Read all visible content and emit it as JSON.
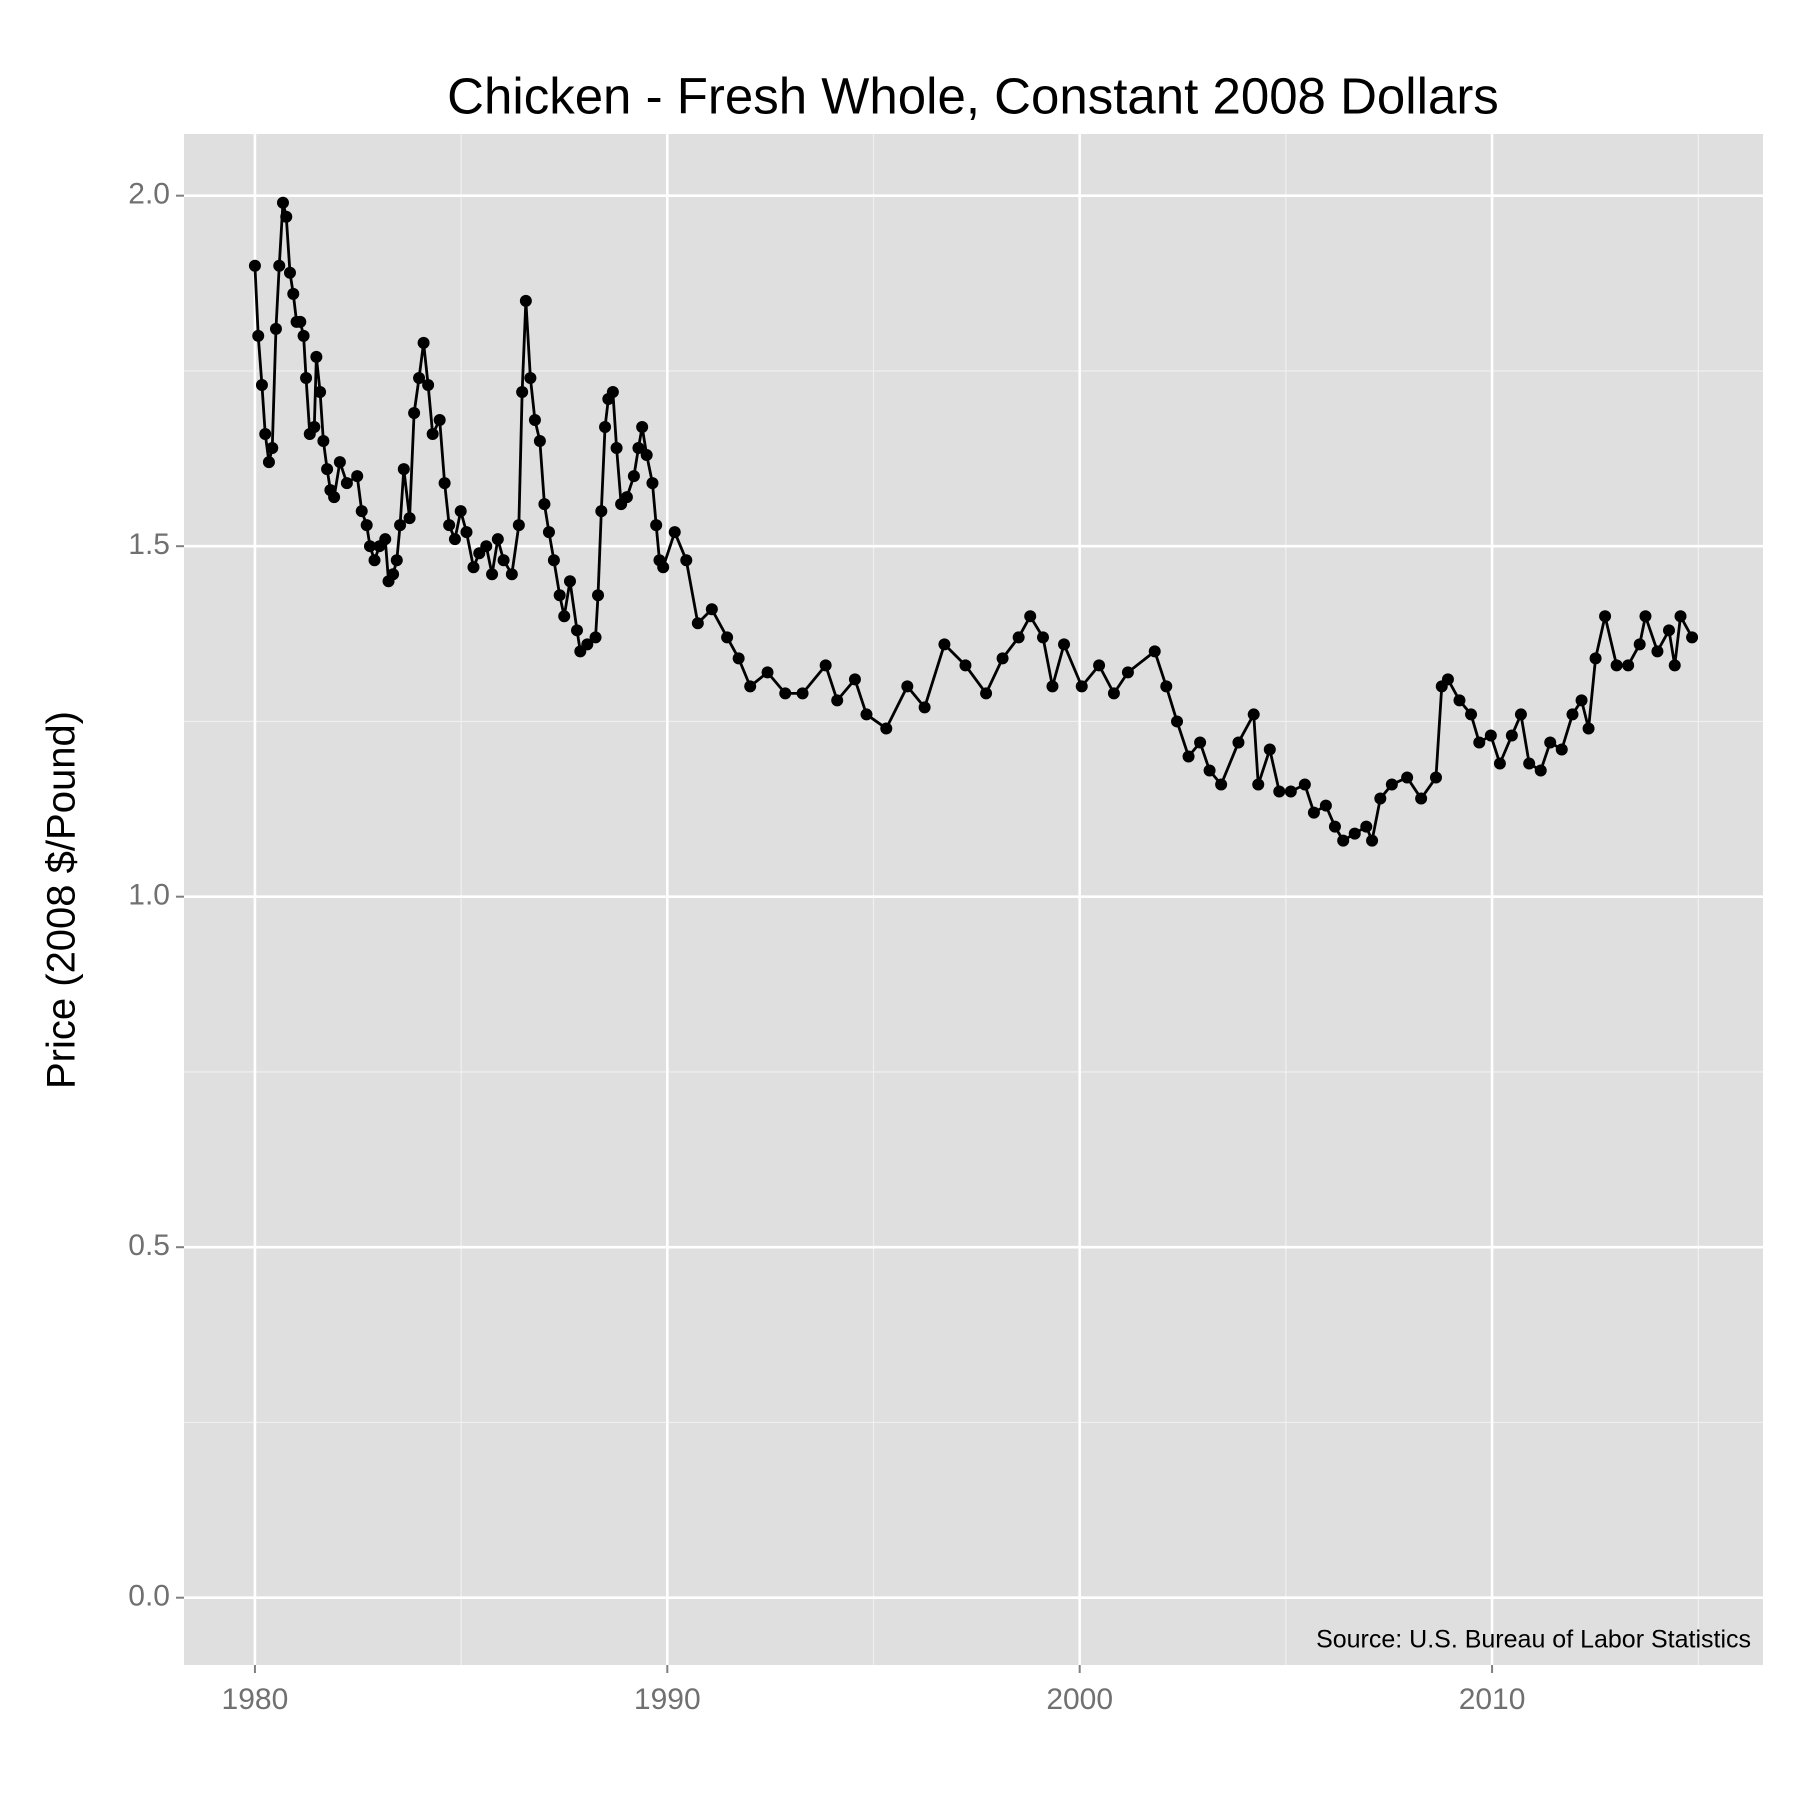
{
  "chart_data": {
    "type": "line",
    "title": "Chicken - Fresh Whole, Constant 2008 Dollars",
    "y_label": "Price (2008 $/Pound)",
    "annotation": "Source:  U.S. Bureau of Labor Statistics",
    "xlim": [
      1978.28,
      2016.57
    ],
    "ylim": [
      -0.096,
      2.088
    ],
    "xticks": [
      1980,
      1990,
      2000,
      2010
    ],
    "yticks": [
      {
        "value": 0,
        "label": "0.0"
      },
      {
        "value": 0.5,
        "label": "0.5"
      },
      {
        "value": 1,
        "label": "1.0"
      },
      {
        "value": 1.5,
        "label": "1.5"
      },
      {
        "value": 2,
        "label": "2.0"
      }
    ],
    "x_minor_grid": [
      1985,
      1995,
      2005,
      2015
    ],
    "y_minor_grid": [
      0.25,
      0.75,
      1.25,
      1.75
    ],
    "grid": true,
    "background": "#dfdfdf",
    "color": "#000000",
    "markers": true,
    "x": [
      1980.0,
      1980.08,
      1980.17,
      1980.25,
      1980.34,
      1980.42,
      1980.51,
      1980.59,
      1980.68,
      1980.76,
      1980.85,
      1980.93,
      1981.01,
      1981.1,
      1981.18,
      1981.24,
      1981.33,
      1981.44,
      1981.49,
      1981.58,
      1981.66,
      1981.75,
      1981.83,
      1981.92,
      1982.06,
      1982.23,
      1982.48,
      1982.59,
      1982.71,
      1982.79,
      1982.9,
      1983.02,
      1983.16,
      1983.24,
      1983.35,
      1983.44,
      1983.52,
      1983.61,
      1983.75,
      1983.86,
      1983.98,
      1984.09,
      1984.2,
      1984.31,
      1984.48,
      1984.6,
      1984.71,
      1984.85,
      1984.99,
      1985.13,
      1985.3,
      1985.44,
      1985.61,
      1985.75,
      1985.89,
      1986.03,
      1986.23,
      1986.4,
      1986.48,
      1986.57,
      1986.68,
      1986.79,
      1986.91,
      1987.02,
      1987.13,
      1987.25,
      1987.39,
      1987.5,
      1987.64,
      1987.81,
      1987.89,
      1988.06,
      1988.26,
      1988.32,
      1988.4,
      1988.49,
      1988.57,
      1988.68,
      1988.77,
      1988.88,
      1989.02,
      1989.19,
      1989.3,
      1989.39,
      1989.5,
      1989.64,
      1989.73,
      1989.81,
      1989.9,
      1990.18,
      1990.46,
      1990.74,
      1991.08,
      1991.45,
      1991.73,
      1992.01,
      1992.43,
      1992.86,
      1993.28,
      1993.84,
      1994.12,
      1994.55,
      1994.83,
      1995.31,
      1995.82,
      1996.24,
      1996.72,
      1997.23,
      1997.73,
      1998.13,
      1998.52,
      1998.8,
      1999.11,
      1999.34,
      1999.62,
      2000.05,
      2000.47,
      2000.83,
      2001.17,
      2001.82,
      2002.1,
      2002.36,
      2002.64,
      2002.92,
      2003.15,
      2003.43,
      2003.85,
      2004.22,
      2004.33,
      2004.61,
      2004.84,
      2005.12,
      2005.46,
      2005.68,
      2005.97,
      2006.19,
      2006.39,
      2006.67,
      2006.95,
      2007.09,
      2007.29,
      2007.57,
      2007.94,
      2008.28,
      2008.64,
      2008.78,
      2008.93,
      2009.21,
      2009.49,
      2009.69,
      2009.97,
      2010.19,
      2010.48,
      2010.7,
      2010.9,
      2011.18,
      2011.41,
      2011.69,
      2011.95,
      2012.17,
      2012.34,
      2012.51,
      2012.74,
      2013.02,
      2013.3,
      2013.58,
      2013.72,
      2014.01,
      2014.29,
      2014.43,
      2014.57,
      2014.85
    ],
    "values": [
      1.9,
      1.8,
      1.73,
      1.66,
      1.62,
      1.64,
      1.81,
      1.9,
      1.99,
      1.97,
      1.89,
      1.86,
      1.82,
      1.82,
      1.8,
      1.74,
      1.66,
      1.67,
      1.77,
      1.72,
      1.65,
      1.61,
      1.58,
      1.57,
      1.62,
      1.59,
      1.6,
      1.55,
      1.53,
      1.5,
      1.48,
      1.5,
      1.51,
      1.45,
      1.46,
      1.48,
      1.53,
      1.61,
      1.54,
      1.69,
      1.74,
      1.79,
      1.73,
      1.66,
      1.68,
      1.59,
      1.53,
      1.51,
      1.55,
      1.52,
      1.47,
      1.49,
      1.5,
      1.46,
      1.51,
      1.48,
      1.46,
      1.53,
      1.72,
      1.85,
      1.74,
      1.68,
      1.65,
      1.56,
      1.52,
      1.48,
      1.43,
      1.4,
      1.45,
      1.38,
      1.35,
      1.36,
      1.37,
      1.43,
      1.55,
      1.67,
      1.71,
      1.72,
      1.64,
      1.56,
      1.57,
      1.6,
      1.64,
      1.67,
      1.63,
      1.59,
      1.53,
      1.48,
      1.47,
      1.52,
      1.48,
      1.39,
      1.41,
      1.37,
      1.34,
      1.3,
      1.32,
      1.29,
      1.29,
      1.33,
      1.28,
      1.31,
      1.26,
      1.24,
      1.3,
      1.27,
      1.36,
      1.33,
      1.29,
      1.34,
      1.37,
      1.4,
      1.37,
      1.3,
      1.36,
      1.3,
      1.33,
      1.29,
      1.32,
      1.35,
      1.3,
      1.25,
      1.2,
      1.22,
      1.18,
      1.16,
      1.22,
      1.26,
      1.16,
      1.21,
      1.15,
      1.15,
      1.16,
      1.12,
      1.13,
      1.1,
      1.08,
      1.09,
      1.1,
      1.08,
      1.14,
      1.16,
      1.17,
      1.14,
      1.17,
      1.3,
      1.31,
      1.28,
      1.26,
      1.22,
      1.23,
      1.19,
      1.23,
      1.26,
      1.19,
      1.18,
      1.22,
      1.21,
      1.26,
      1.28,
      1.24,
      1.34,
      1.4,
      1.33,
      1.33,
      1.36,
      1.4,
      1.35,
      1.38,
      1.33,
      1.4,
      1.37
    ]
  }
}
